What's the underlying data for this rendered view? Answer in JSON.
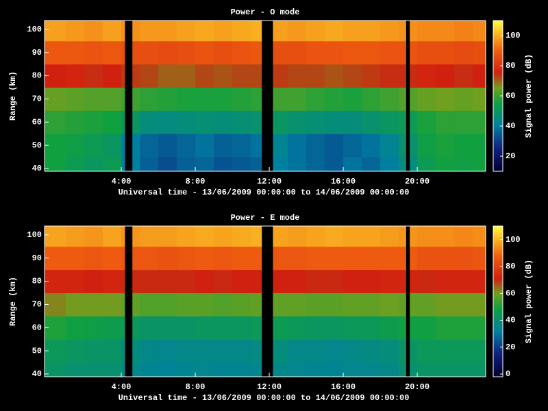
{
  "chart_data": [
    {
      "type": "heatmap",
      "title": "Power - O mode",
      "x_label": "Universal time - 13/06/2009 00:00:00 to 14/06/2009 00:00:00",
      "y_label": "Range (km)",
      "colorbar_label": "Signal power (dB)",
      "xlim": [
        -0.15,
        23.7
      ],
      "ylim": [
        38.8,
        103.8
      ],
      "clim": [
        10,
        110
      ],
      "xticks": [
        {
          "value": 4,
          "label": "4:00"
        },
        {
          "value": 8,
          "label": "8:00"
        },
        {
          "value": 12,
          "label": "12:00"
        },
        {
          "value": 16,
          "label": "16:00"
        },
        {
          "value": 20,
          "label": "20:00"
        }
      ],
      "yticks": [
        40,
        50,
        60,
        70,
        80,
        90,
        100
      ],
      "cticks": [
        20,
        40,
        60,
        80,
        100
      ],
      "colorscale": [
        [
          0,
          "#000030"
        ],
        [
          0.15,
          "#102080"
        ],
        [
          0.3,
          "#0080a0"
        ],
        [
          0.45,
          "#10a040"
        ],
        [
          0.55,
          "#70a020"
        ],
        [
          0.65,
          "#d02010"
        ],
        [
          0.8,
          "#f06010"
        ],
        [
          0.9,
          "#f8b020"
        ],
        [
          1,
          "#ffff40"
        ]
      ],
      "xbins": [
        -0.15,
        1,
        2,
        3,
        4,
        5,
        6,
        7,
        8,
        9,
        10,
        11,
        12,
        13,
        14,
        15,
        16,
        17,
        18,
        19,
        20,
        21,
        22,
        23,
        23.7
      ],
      "ybins": [
        38.8,
        45,
        55,
        65,
        75,
        85,
        95,
        103.8
      ],
      "values": [
        [
          55,
          52,
          50,
          52,
          40,
          35,
          32,
          35,
          36,
          33,
          34,
          35,
          40,
          38,
          36,
          34,
          38,
          36,
          40,
          45,
          52,
          55,
          54,
          55
        ],
        [
          55,
          54,
          52,
          50,
          40,
          36,
          34,
          36,
          38,
          35,
          36,
          38,
          42,
          38,
          36,
          34,
          36,
          38,
          42,
          48,
          54,
          56,
          55,
          55
        ],
        [
          58,
          57,
          56,
          55,
          50,
          46,
          45,
          46,
          47,
          46,
          47,
          48,
          50,
          48,
          47,
          46,
          46,
          48,
          50,
          52,
          56,
          58,
          58,
          58
        ],
        [
          64,
          63,
          62,
          62,
          60,
          58,
          57,
          56,
          56,
          56,
          57,
          58,
          60,
          60,
          58,
          57,
          56,
          58,
          60,
          62,
          64,
          65,
          64,
          65
        ],
        [
          75,
          76,
          74,
          75,
          73,
          72,
          70,
          70,
          72,
          71,
          72,
          72,
          73,
          72,
          72,
          71,
          72,
          73,
          74,
          74,
          76,
          75,
          74,
          75
        ],
        [
          88,
          88,
          87,
          88,
          86,
          86,
          85,
          86,
          87,
          86,
          87,
          88,
          86,
          86,
          87,
          87,
          88,
          88,
          87,
          87,
          86,
          86,
          85,
          86
        ],
        [
          98,
          97,
          96,
          98,
          96,
          97,
          97,
          98,
          99,
          98,
          99,
          100,
          98,
          97,
          98,
          99,
          98,
          98,
          97,
          96,
          95,
          95,
          94,
          95
        ]
      ],
      "gaps": [
        [
          4.2,
          4.6
        ],
        [
          11.6,
          12.2
        ],
        [
          19.4,
          19.6
        ]
      ]
    },
    {
      "type": "heatmap",
      "title": "Power - E mode",
      "x_label": "Universal time - 13/06/2009 00:00:00 to 14/06/2009 00:00:00",
      "y_label": "Range (km)",
      "colorbar_label": "Signal power (dB)",
      "xlim": [
        -0.15,
        23.7
      ],
      "ylim": [
        38.8,
        103.8
      ],
      "clim": [
        -2,
        110
      ],
      "xticks": [
        {
          "value": 4,
          "label": "4:00"
        },
        {
          "value": 8,
          "label": "8:00"
        },
        {
          "value": 12,
          "label": "12:00"
        },
        {
          "value": 16,
          "label": "16:00"
        },
        {
          "value": 20,
          "label": "20:00"
        }
      ],
      "yticks": [
        40,
        50,
        60,
        70,
        80,
        90,
        100
      ],
      "cticks": [
        0,
        20,
        40,
        60,
        80,
        100
      ],
      "colorscale": [
        [
          0,
          "#000030"
        ],
        [
          0.15,
          "#102080"
        ],
        [
          0.3,
          "#0080a0"
        ],
        [
          0.45,
          "#10a040"
        ],
        [
          0.55,
          "#70a020"
        ],
        [
          0.65,
          "#d02010"
        ],
        [
          0.8,
          "#f06010"
        ],
        [
          0.9,
          "#f8b020"
        ],
        [
          1,
          "#ffff40"
        ]
      ],
      "xbins": [
        -0.15,
        1,
        2,
        3,
        4,
        5,
        6,
        7,
        8,
        9,
        10,
        11,
        12,
        13,
        14,
        15,
        16,
        17,
        18,
        19,
        20,
        21,
        22,
        23,
        23.7
      ],
      "ybins": [
        38.8,
        45,
        55,
        65,
        75,
        85,
        95,
        103.8
      ],
      "values": [
        [
          42,
          40,
          40,
          40,
          36,
          34,
          33,
          34,
          35,
          34,
          34,
          35,
          36,
          35,
          34,
          34,
          35,
          35,
          36,
          40,
          42,
          42,
          42,
          42
        ],
        [
          44,
          43,
          42,
          42,
          38,
          36,
          35,
          36,
          36,
          36,
          36,
          37,
          38,
          36,
          36,
          35,
          36,
          37,
          38,
          42,
          44,
          44,
          44,
          44
        ],
        [
          50,
          48,
          47,
          46,
          44,
          42,
          42,
          42,
          43,
          43,
          43,
          44,
          45,
          44,
          43,
          43,
          44,
          44,
          46,
          48,
          48,
          50,
          50,
          50
        ],
        [
          62,
          60,
          60,
          60,
          58,
          56,
          56,
          57,
          57,
          56,
          57,
          58,
          58,
          58,
          57,
          57,
          58,
          58,
          59,
          58,
          58,
          60,
          60,
          60
        ],
        [
          72,
          72,
          71,
          72,
          70,
          70,
          70,
          70,
          71,
          70,
          71,
          71,
          71,
          71,
          70,
          70,
          71,
          71,
          72,
          72,
          70,
          72,
          72,
          72
        ],
        [
          86,
          86,
          85,
          86,
          85,
          85,
          84,
          85,
          86,
          85,
          86,
          86,
          85,
          85,
          86,
          86,
          86,
          86,
          86,
          86,
          84,
          84,
          84,
          85
        ],
        [
          97,
          96,
          95,
          97,
          95,
          96,
          96,
          97,
          98,
          97,
          98,
          99,
          97,
          96,
          97,
          98,
          97,
          97,
          96,
          95,
          94,
          94,
          93,
          94
        ]
      ],
      "gaps": [
        [
          4.2,
          4.6
        ],
        [
          11.6,
          12.2
        ],
        [
          19.4,
          19.6
        ]
      ]
    }
  ]
}
